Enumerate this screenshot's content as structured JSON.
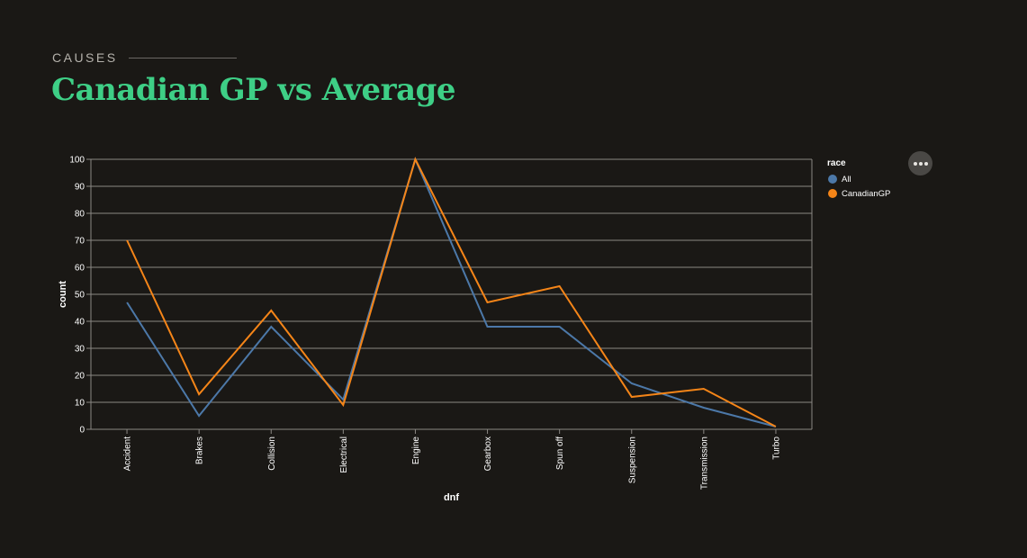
{
  "header": {
    "eyebrow": "CAUSES",
    "title": "Canadian GP vs Average"
  },
  "actions": {
    "icon": "more-horizontal-icon"
  },
  "legend": {
    "title": "race"
  },
  "chart_data": {
    "type": "line",
    "categories": [
      "Accident",
      "Brakes",
      "Collision",
      "Electrical",
      "Engine",
      "Gearbox",
      "Spun off",
      "Suspension",
      "Transmission",
      "Turbo"
    ],
    "series": [
      {
        "name": "All",
        "color": "#4c78a8",
        "values": [
          47,
          5,
          38,
          11,
          100,
          38,
          38,
          17,
          8,
          1
        ]
      },
      {
        "name": "CanadianGP",
        "color": "#f58518",
        "values": [
          70,
          13,
          44,
          9,
          100,
          47,
          53,
          12,
          15,
          1
        ]
      }
    ],
    "xlabel": "dnf",
    "ylabel": "count",
    "ylim": [
      0,
      100
    ],
    "yticks": [
      0,
      10,
      20,
      30,
      40,
      50,
      60,
      70,
      80,
      90,
      100
    ],
    "grid": true,
    "legend_position": "right",
    "colors": {
      "background": "#1a1815",
      "grid": "#8a8783",
      "axis_text": "#ffffff",
      "title": "#3ecf86"
    }
  }
}
